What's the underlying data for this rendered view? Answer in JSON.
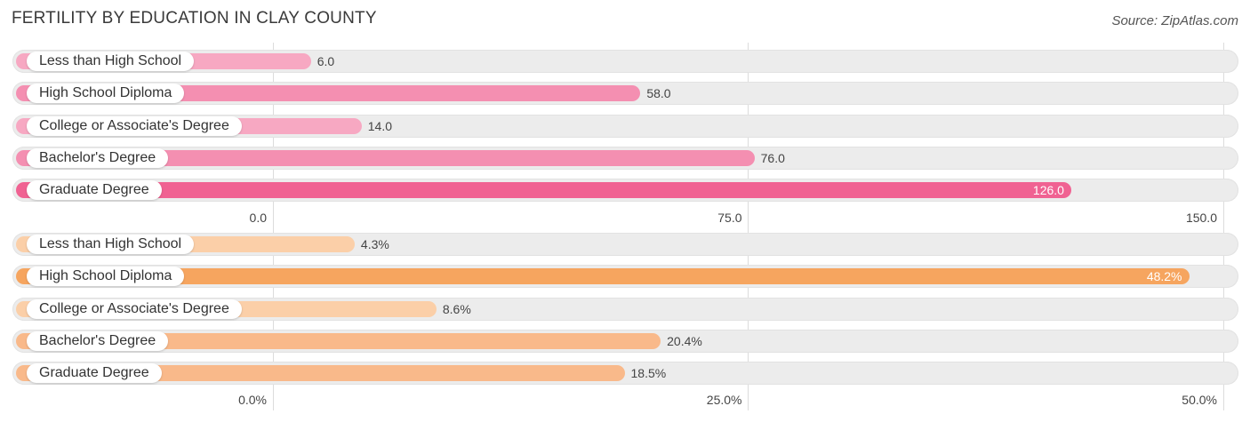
{
  "title": "FERTILITY BY EDUCATION IN CLAY COUNTY",
  "source": "Source: ZipAtlas.com",
  "chart_data": [
    {
      "type": "bar",
      "orientation": "horizontal",
      "categories": [
        "Less than High School",
        "High School Diploma",
        "College or Associate's Degree",
        "Bachelor's Degree",
        "Graduate Degree"
      ],
      "values": [
        6.0,
        58.0,
        14.0,
        76.0,
        126.0
      ],
      "value_labels": [
        "6.0",
        "58.0",
        "14.0",
        "76.0",
        "126.0"
      ],
      "xlim": [
        0,
        150
      ],
      "ticks": [
        0,
        75,
        150
      ],
      "tick_labels": [
        "0.0",
        "75.0",
        "150.0"
      ],
      "colors": {
        "light": "#f7a8c2",
        "mid": "#f48fb1",
        "dark": "#f06292"
      }
    },
    {
      "type": "bar",
      "orientation": "horizontal",
      "categories": [
        "Less than High School",
        "High School Diploma",
        "College or Associate's Degree",
        "Bachelor's Degree",
        "Graduate Degree"
      ],
      "values": [
        4.3,
        48.2,
        8.6,
        20.4,
        18.5
      ],
      "value_labels": [
        "4.3%",
        "48.2%",
        "8.6%",
        "20.4%",
        "18.5%"
      ],
      "xlim": [
        0,
        50
      ],
      "ticks": [
        0,
        25,
        50
      ],
      "tick_labels": [
        "0.0%",
        "25.0%",
        "50.0%"
      ],
      "colors": {
        "light": "#fbcfa8",
        "mid": "#f9b98a",
        "dark": "#f6a55f"
      }
    }
  ]
}
